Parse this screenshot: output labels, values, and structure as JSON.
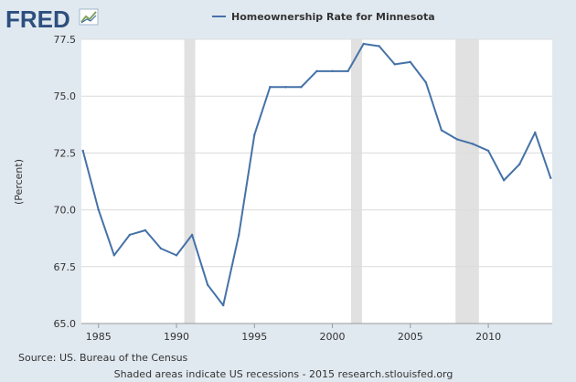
{
  "logo": {
    "text": "FRED"
  },
  "chart_data": {
    "type": "line",
    "legend": "Homeownership Rate for Minnesota",
    "ylabel": "(Percent)",
    "xlabel": "",
    "x": [
      1984,
      1985,
      1986,
      1987,
      1988,
      1989,
      1990,
      1991,
      1992,
      1993,
      1994,
      1995,
      1996,
      1997,
      1998,
      1999,
      2000,
      2001,
      2002,
      2003,
      2004,
      2005,
      2006,
      2007,
      2008,
      2009,
      2010,
      2011,
      2012,
      2013,
      2014
    ],
    "series": [
      {
        "name": "Homeownership Rate for Minnesota",
        "color": "#4572a7",
        "values": [
          72.6,
          70.0,
          68.0,
          68.9,
          69.1,
          68.3,
          68.0,
          68.9,
          66.7,
          65.8,
          68.9,
          73.3,
          75.4,
          75.4,
          75.4,
          76.1,
          76.1,
          76.1,
          77.3,
          77.2,
          76.4,
          76.5,
          75.6,
          73.5,
          73.1,
          72.9,
          72.6,
          71.3,
          72.0,
          73.4,
          71.4
        ]
      }
    ],
    "ylim": [
      65.0,
      77.5
    ],
    "xlim": [
      1983.9,
      2014.1
    ],
    "yticks": [
      "65.0",
      "67.5",
      "70.0",
      "72.5",
      "75.0",
      "77.5"
    ],
    "xticks": [
      "1985",
      "1990",
      "1995",
      "2000",
      "2005",
      "2010"
    ],
    "recessions": [
      [
        1990.5,
        1991.2
      ],
      [
        2001.2,
        2001.9
      ],
      [
        2007.9,
        2009.4
      ]
    ],
    "grid": true,
    "legend_position": "top-center"
  },
  "footer": {
    "source": "Source: US. Bureau of the Census",
    "note": "Shaded areas indicate US recessions - 2015 research.stlouisfed.org"
  }
}
